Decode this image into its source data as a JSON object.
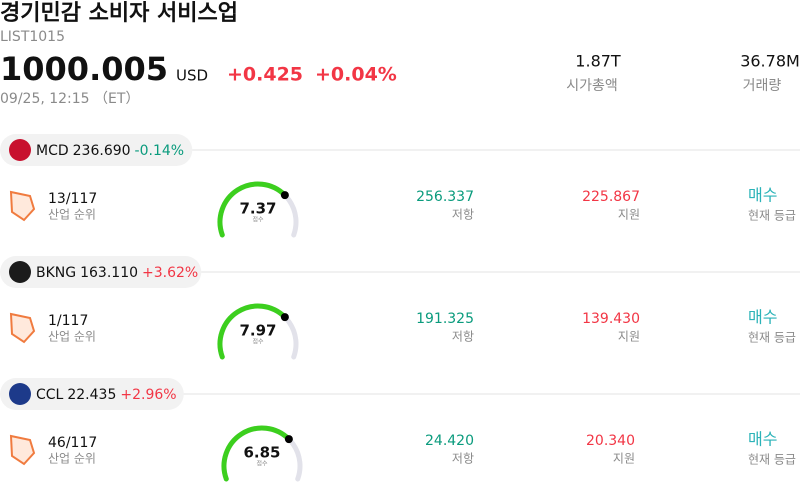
{
  "header": {
    "title": "경기민감 소비자 서비스업",
    "code": "LIST1015",
    "price": "1000.005",
    "currency": "USD",
    "change": "+0.425",
    "change_pct": "+0.04%",
    "time": "09/25, 12:15 （ET）",
    "market_cap": "1.87T",
    "market_cap_label": "시가총액",
    "volume": "36.78M",
    "volume_label": "거래량"
  },
  "stocks": [
    {
      "ticker": "MCD",
      "price": "236.690",
      "change": "-0.14%",
      "rank": "13/117",
      "rank_label": "산업 순위",
      "score": "7.37",
      "score_label": "점수",
      "resistance": "256.337",
      "resistance_label": "저항",
      "support": "225.867",
      "support_label": "지원",
      "signal": "매수",
      "signal_label": "현재 등급"
    },
    {
      "ticker": "BKNG",
      "price": "163.110",
      "change": "+3.62%",
      "rank": "1/117",
      "rank_label": "산업 순위",
      "score": "7.97",
      "score_label": "점수",
      "resistance": "191.325",
      "resistance_label": "저항",
      "support": "139.430",
      "support_label": "지원",
      "signal": "매수",
      "signal_label": "현재 등급"
    },
    {
      "ticker": "CCL",
      "price": "22.435",
      "change": "+2.96%",
      "rank": "46/117",
      "rank_label": "산업 순위",
      "score": "6.85",
      "score_label": "점수",
      "resistance": "24.420",
      "resistance_label": "저항",
      "support": "20.340",
      "support_label": "지원",
      "signal": "매수",
      "signal_label": "현재 등급"
    }
  ]
}
